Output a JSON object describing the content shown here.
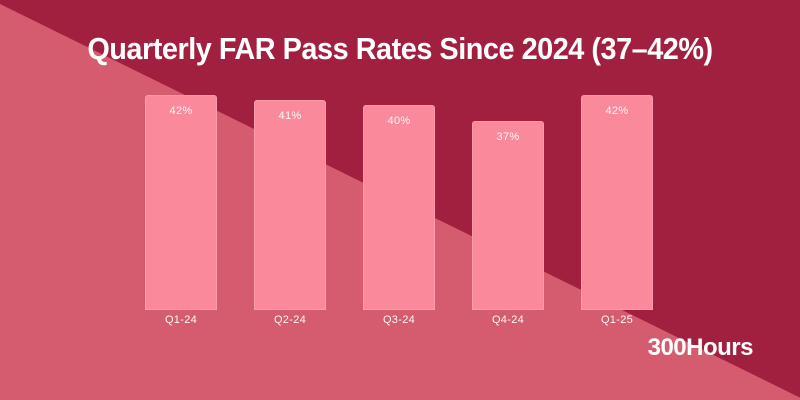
{
  "watermark": "300Hours",
  "colors": {
    "background_dark": "#A1203F",
    "background_light": "#D55B6F",
    "bar": "#FA8A9B",
    "text": "#FFFFFF"
  },
  "chart_data": {
    "type": "bar",
    "title": "Quarterly FAR Pass Rates Since 2024 (37–42%)",
    "categories": [
      "Q1-24",
      "Q2-24",
      "Q3-24",
      "Q4-24",
      "Q1-25"
    ],
    "values": [
      42,
      41,
      40,
      37,
      42
    ],
    "labels": [
      "42%",
      "41%",
      "40%",
      "37%",
      "42%"
    ],
    "xlabel": "",
    "ylabel": "",
    "ylim": [
      0,
      42
    ],
    "grid": false,
    "legend": false,
    "data_labels_position": "inside-top",
    "x_axis_labels_position": "below-bars"
  }
}
